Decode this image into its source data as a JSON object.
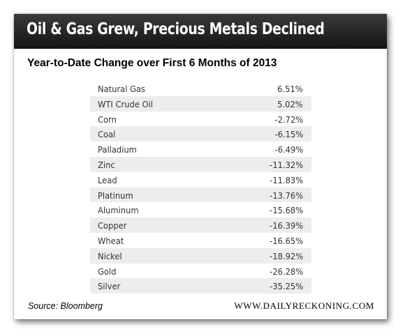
{
  "title": "Oil & Gas Grew, Precious Metals Declined",
  "subtitle": "Year-to-Date Change over First 6 Months of 2013",
  "source": "Source: Bloomberg",
  "website": "WWW.DAILYRECKONING.COM",
  "colors": {
    "header_bg": "#222222",
    "header_text": "#ffffff",
    "row_shade": "#ededed",
    "row_text": "#333333"
  },
  "chart_data": {
    "type": "table",
    "title": "Oil & Gas Grew, Precious Metals Declined",
    "subtitle": "Year-to-Date Change over First 6 Months of 2013",
    "columns": [
      "",
      ""
    ],
    "rows": [
      {
        "name": "Natural Gas",
        "value": "6.51%"
      },
      {
        "name": "WTI Crude Oil",
        "value": "5.02%"
      },
      {
        "name": "Corn",
        "value": "-2.72%"
      },
      {
        "name": "Coal",
        "value": "-6.15%"
      },
      {
        "name": "Palladium",
        "value": "-6.49%"
      },
      {
        "name": "Zinc",
        "value": "-11.32%"
      },
      {
        "name": "Lead",
        "value": "-11.83%"
      },
      {
        "name": "Platinum",
        "value": "-13.76%"
      },
      {
        "name": "Aluminum",
        "value": "-15.68%"
      },
      {
        "name": "Copper",
        "value": "-16.39%"
      },
      {
        "name": "Wheat",
        "value": "-16.65%"
      },
      {
        "name": "Nickel",
        "value": "-18.92%"
      },
      {
        "name": "Gold",
        "value": "-26.28%"
      },
      {
        "name": "Silver",
        "value": "-35.25%"
      }
    ]
  }
}
